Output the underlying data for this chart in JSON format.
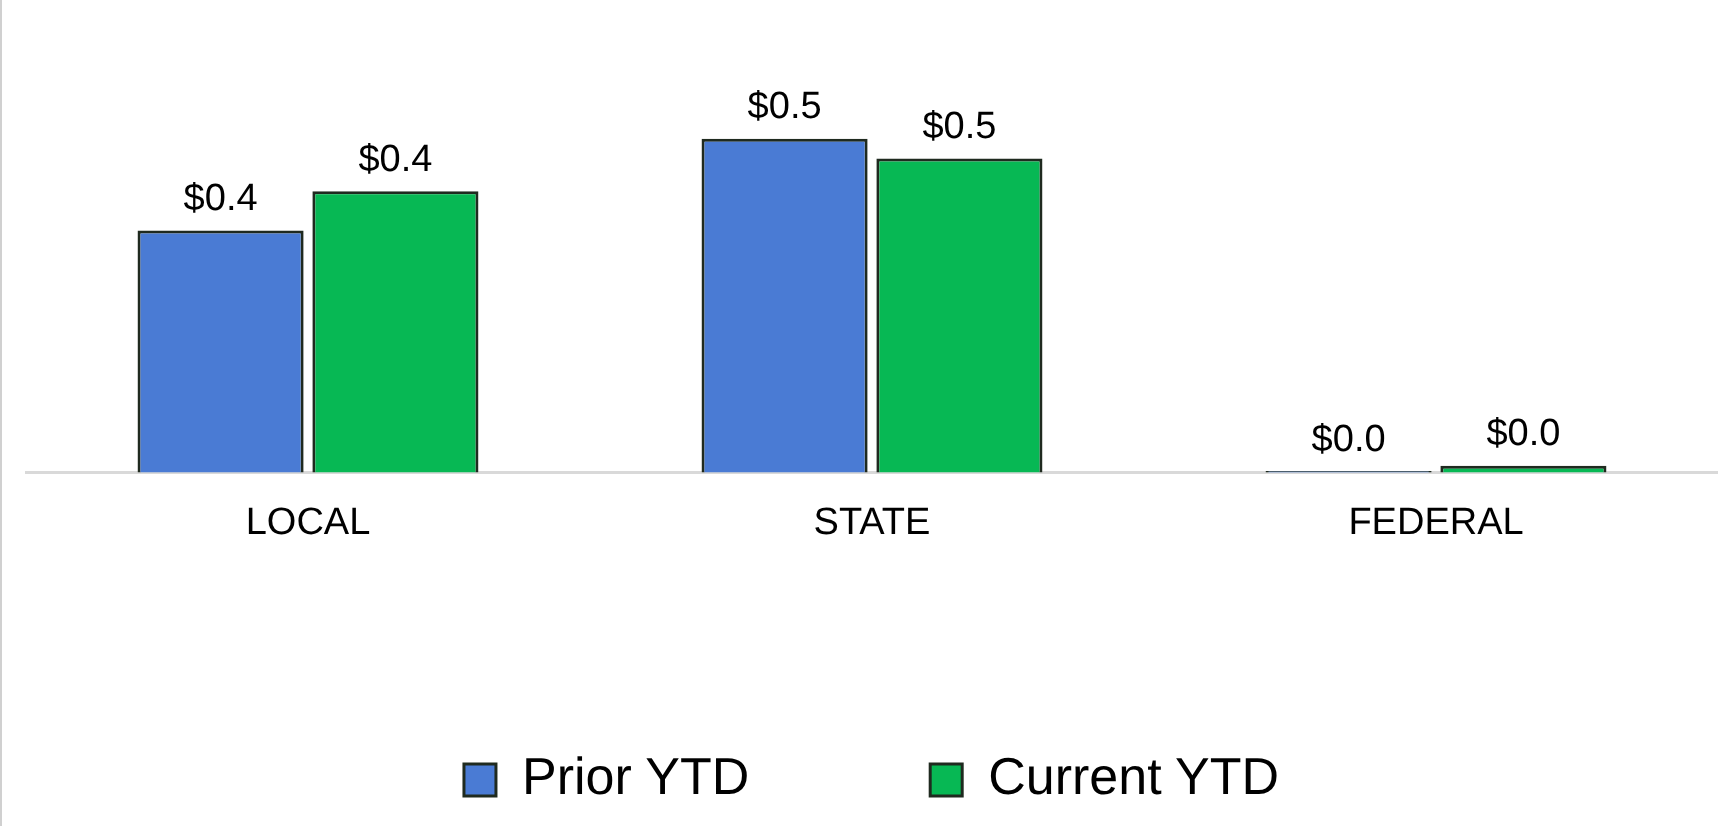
{
  "chart_data": {
    "type": "bar",
    "categories": [
      "LOCAL",
      "STATE",
      "FEDERAL"
    ],
    "series": [
      {
        "name": "Prior YTD",
        "color": "#4a7bd4",
        "values": [
          0.37,
          0.51,
          0.002
        ],
        "value_labels": [
          "$0.4",
          "$0.5",
          "$0.0"
        ]
      },
      {
        "name": "Current YTD",
        "color": "#07b854",
        "values": [
          0.43,
          0.48,
          0.01
        ],
        "value_labels": [
          "$0.4",
          "$0.5",
          "$0.0"
        ]
      }
    ],
    "legend": "bottom",
    "grid": false
  }
}
